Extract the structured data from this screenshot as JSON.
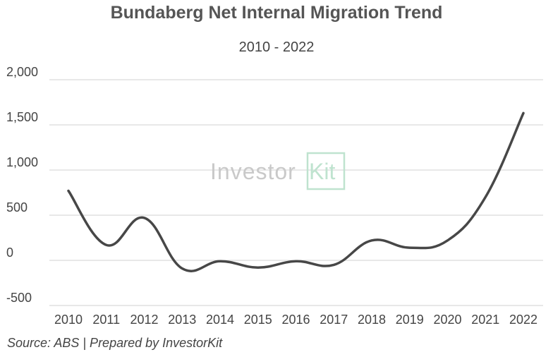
{
  "chart_data": {
    "type": "line",
    "title": "Bundaberg Net Internal Migration Trend",
    "subtitle": "2010 - 2022",
    "xlabel": "",
    "ylabel": "",
    "categories": [
      "2010",
      "2011",
      "2012",
      "2013",
      "2014",
      "2015",
      "2016",
      "2017",
      "2018",
      "2019",
      "2020",
      "2021",
      "2022"
    ],
    "series": [
      {
        "values": [
          770,
          170,
          470,
          -90,
          -10,
          -80,
          -10,
          -50,
          220,
          140,
          220,
          700,
          1630
        ]
      }
    ],
    "ylim": [
      -500,
      2000
    ],
    "yticks": [
      -500,
      0,
      500,
      1000,
      1500,
      2000
    ],
    "ytick_labels": [
      "-500",
      "0",
      "500",
      "1,000",
      "1,500",
      "2,000"
    ],
    "grid": true,
    "line_color": "#474747"
  },
  "watermark": {
    "text": "Investor",
    "kit": "Kit"
  },
  "source": "Source: ABS | Prepared by InvestorKit"
}
